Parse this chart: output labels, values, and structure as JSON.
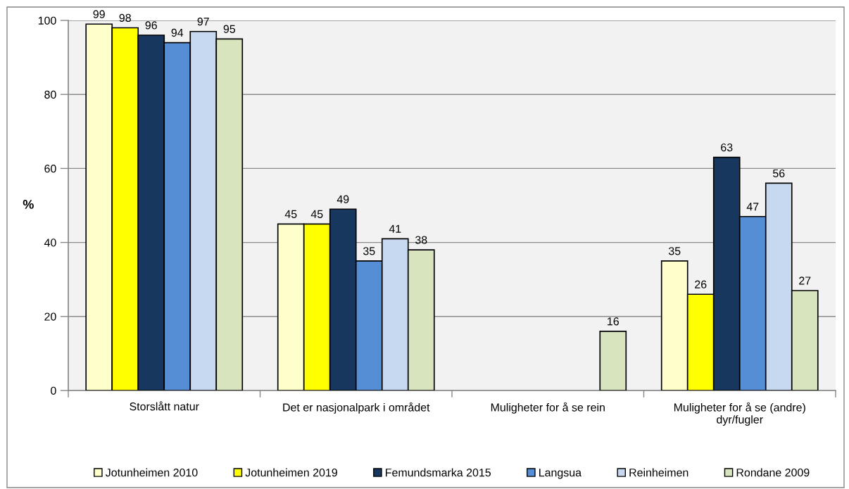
{
  "chart_data": {
    "type": "bar",
    "ylabel": "%",
    "categories": [
      "Storslått natur",
      "Det er nasjonalpark i området",
      "Muligheter for å se rein",
      "Muligheter for å se (andre) dyr/fugler"
    ],
    "series": [
      {
        "name": "Jotunheimen 2010",
        "color": "#ffffcc",
        "values": [
          99,
          45,
          null,
          35
        ]
      },
      {
        "name": "Jotunheimen 2019",
        "color": "#ffff00",
        "values": [
          98,
          45,
          null,
          26
        ]
      },
      {
        "name": "Femundsmarka 2015",
        "color": "#17375e",
        "values": [
          96,
          49,
          null,
          63
        ]
      },
      {
        "name": "Langsua",
        "color": "#558ed5",
        "values": [
          94,
          35,
          null,
          47
        ]
      },
      {
        "name": "Reinheimen",
        "color": "#c6d9f1",
        "values": [
          97,
          41,
          null,
          56
        ]
      },
      {
        "name": "Rondane 2009",
        "color": "#d7e4bd",
        "values": [
          95,
          38,
          16,
          27
        ]
      }
    ],
    "ylim": [
      0,
      100
    ],
    "yticks": [
      0,
      20,
      40,
      60,
      80,
      100
    ],
    "grid": "y",
    "legend": "bottom",
    "data_labels": true
  }
}
